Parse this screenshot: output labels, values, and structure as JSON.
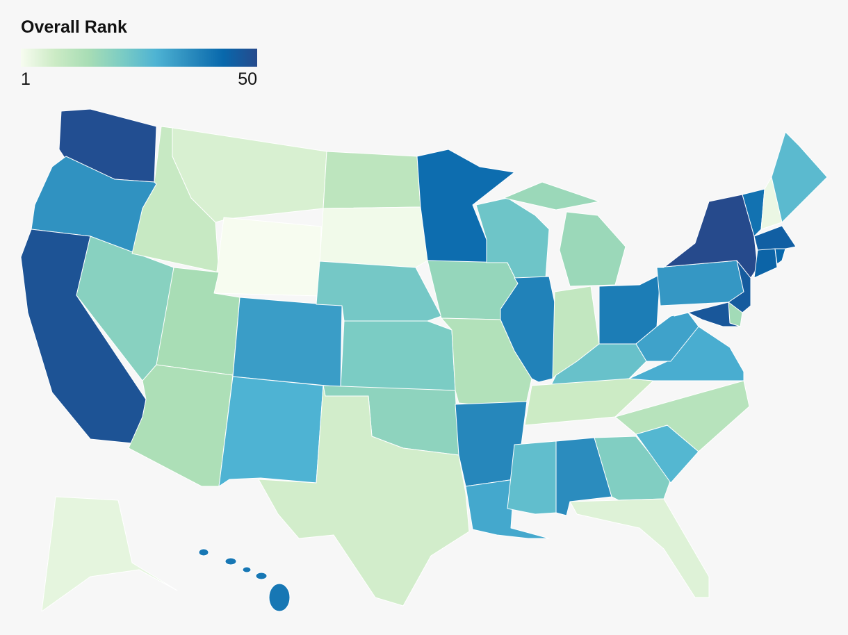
{
  "chart_data": {
    "type": "choropleth",
    "title": "Overall Rank",
    "colorbar": {
      "range": [
        1,
        50
      ],
      "colors": [
        "#f7fcf0",
        "#ccebc5",
        "#a8ddb5",
        "#7bccc4",
        "#4eb3d3",
        "#2b8cbe",
        "#0868ac",
        "#264a8c"
      ]
    },
    "values": [
      49,
      35,
      48,
      20,
      9,
      6,
      1,
      15,
      33,
      14,
      29,
      11,
      2,
      23,
      22,
      19,
      7,
      42,
      18,
      13,
      37,
      31,
      24,
      38,
      17,
      10,
      39,
      25,
      8,
      26,
      36,
      21,
      5,
      28,
      12,
      30,
      32,
      34,
      50,
      41,
      3,
      27,
      45,
      44,
      43,
      46,
      16,
      47,
      4,
      40
    ]
  }
}
